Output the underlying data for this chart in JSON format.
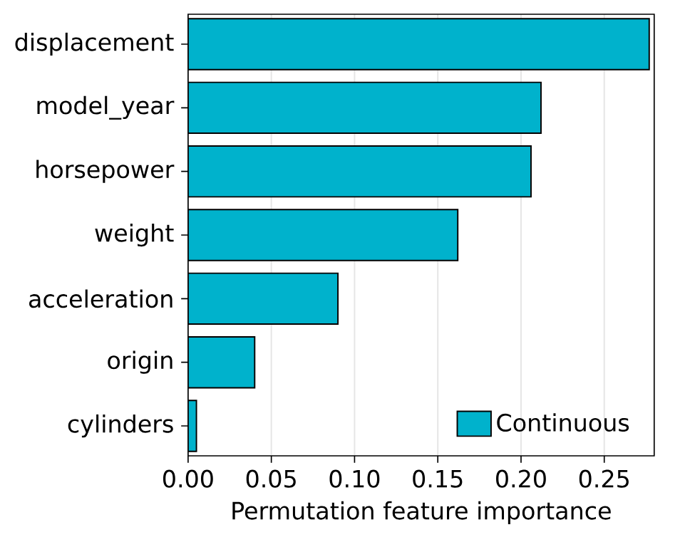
{
  "chart_data": {
    "type": "bar",
    "orientation": "horizontal",
    "xlabel": "Permutation feature importance",
    "categories": [
      "displacement",
      "model_year",
      "horsepower",
      "weight",
      "acceleration",
      "origin",
      "cylinders"
    ],
    "series": [
      {
        "name": "Continuous",
        "color": "#00b2cc",
        "values": [
          0.277,
          0.212,
          0.206,
          0.162,
          0.09,
          0.04,
          0.005
        ]
      }
    ],
    "xlim": [
      0,
      0.28
    ],
    "xticks": [
      {
        "value": 0,
        "label": "0.00"
      },
      {
        "value": 0.05,
        "label": "0.05"
      },
      {
        "value": 0.1,
        "label": "0.10"
      },
      {
        "value": 0.15,
        "label": "0.15"
      },
      {
        "value": 0.2,
        "label": "0.20"
      },
      {
        "value": 0.25,
        "label": "0.25"
      }
    ],
    "grid": "x",
    "legend": "bottom right"
  }
}
